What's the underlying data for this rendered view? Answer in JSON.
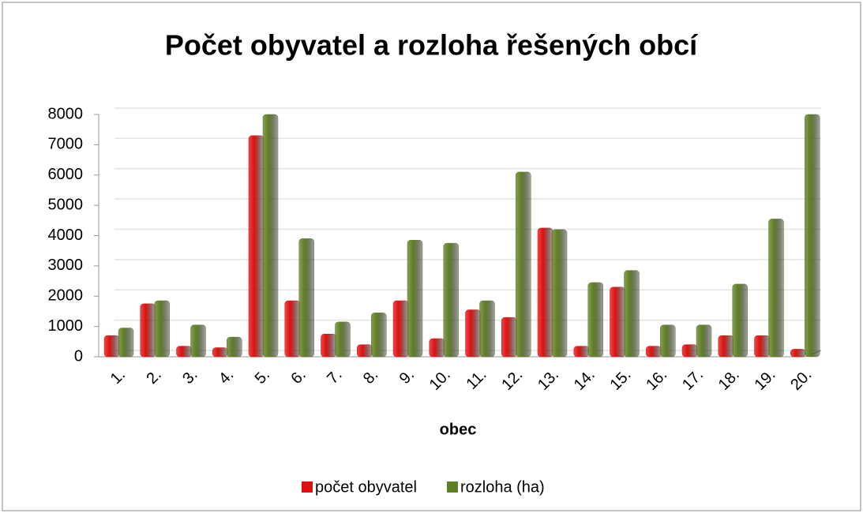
{
  "chart_data": {
    "type": "bar",
    "title": "Počet obyvatel a rozloha řešených obcí",
    "x_label": "obec",
    "categories": [
      "1.",
      "2.",
      "3.",
      "4.",
      "5.",
      "6.",
      "7.",
      "8.",
      "9.",
      "10.",
      "11.",
      "12.",
      "13.",
      "14.",
      "15.",
      "16.",
      "17.",
      "18.",
      "19.",
      "20."
    ],
    "series": [
      {
        "name": "počet obyvatel",
        "color": "#e01010",
        "values": [
          700,
          1750,
          350,
          300,
          7300,
          1850,
          750,
          400,
          1850,
          600,
          1550,
          1300,
          4250,
          350,
          2300,
          350,
          400,
          700,
          700,
          250
        ]
      },
      {
        "name": "rozloha (ha)",
        "color": "#5f7f24",
        "values": [
          950,
          1850,
          1050,
          650,
          8000,
          3900,
          1150,
          1450,
          3850,
          3750,
          1850,
          6100,
          4200,
          2450,
          2850,
          1050,
          1050,
          2400,
          4550,
          8000
        ]
      }
    ],
    "ylim": [
      0,
      8000
    ],
    "yticks": [
      0,
      1000,
      2000,
      3000,
      4000,
      5000,
      6000,
      7000,
      8000
    ],
    "grid": true
  }
}
